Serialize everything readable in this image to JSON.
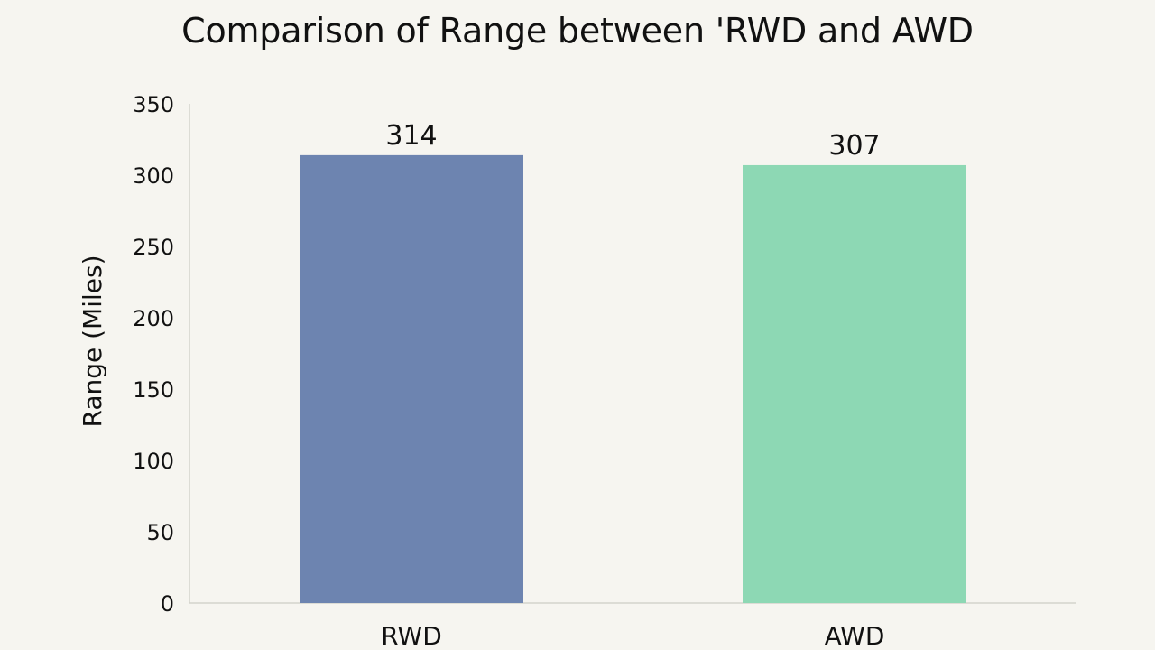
{
  "chart_data": {
    "type": "bar",
    "title": "Comparison of Range between 'RWD and AWD",
    "xlabel": "",
    "ylabel": "Range (Miles)",
    "ylim": [
      0,
      350
    ],
    "yticks": [
      0,
      50,
      100,
      150,
      200,
      250,
      300,
      350
    ],
    "categories": [
      "RWD",
      "AWD"
    ],
    "values": [
      314,
      307
    ],
    "data_labels": [
      "314",
      "307"
    ],
    "colors": [
      "#6d84b0",
      "#8dd8b4"
    ],
    "grid": false,
    "legend": "none"
  }
}
